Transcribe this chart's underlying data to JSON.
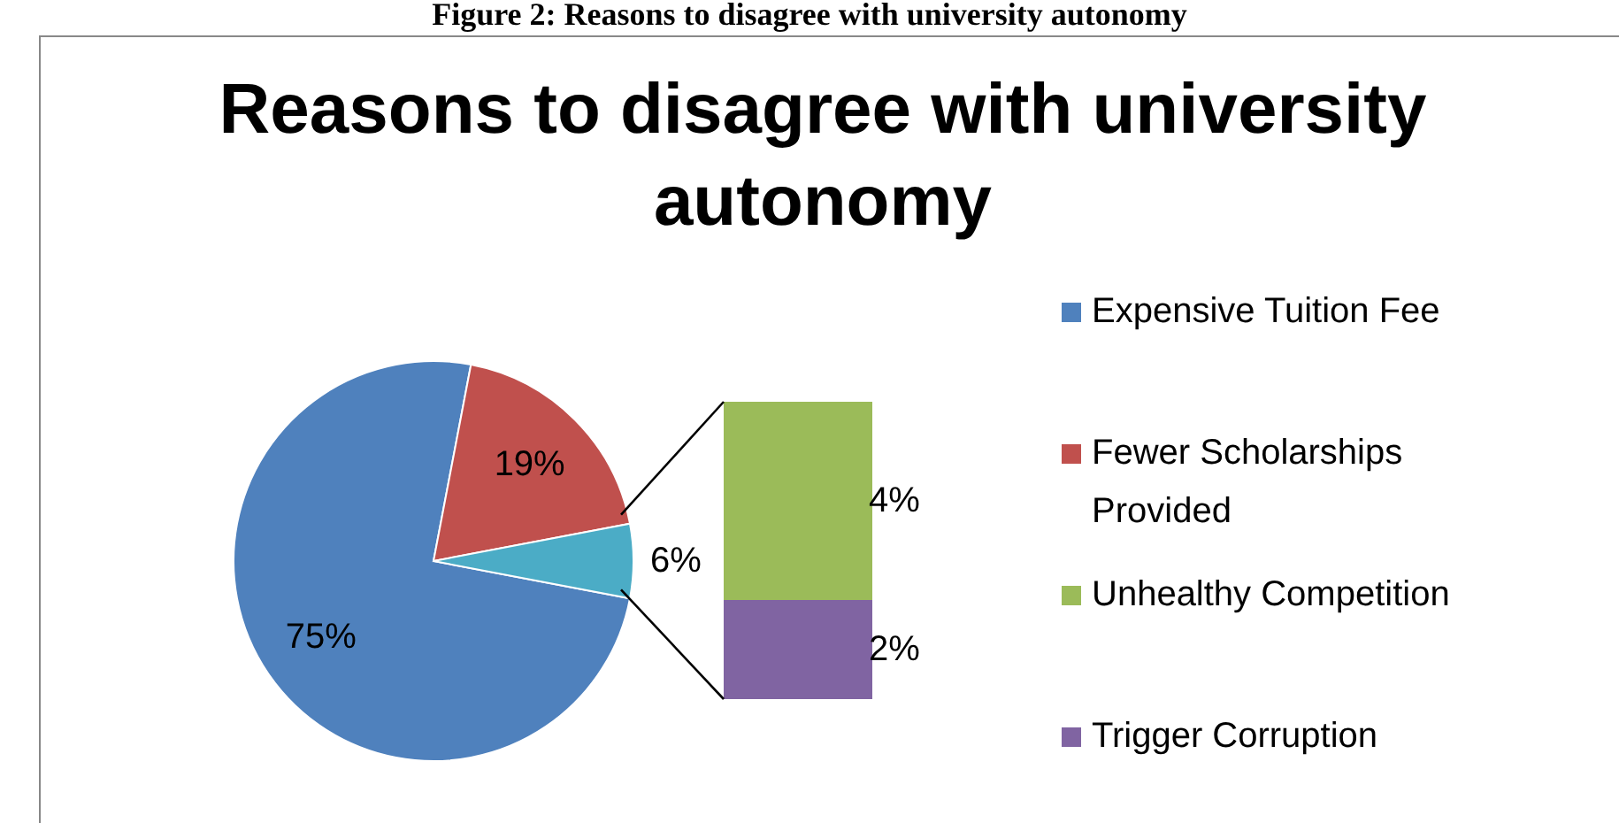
{
  "chart_data": [
    {
      "type": "pie",
      "title": "Reasons to disagree with university autonomy",
      "annotations": [
        "Figure 2: Reasons to disagree with university autonomy"
      ],
      "categories": [
        "Expensive Tuition Fee",
        "Fewer Scholarships Provided",
        null
      ],
      "values": [
        75,
        19,
        6
      ],
      "colors": [
        "#4f81bd",
        "#c0504d",
        "#4bacc6"
      ],
      "value_labels": [
        "75%",
        "19%",
        "6%"
      ],
      "legend": "right"
    },
    {
      "type": "bar",
      "stacked": true,
      "categories": [
        null
      ],
      "series": [
        {
          "name": "Trigger Corruption",
          "color": "#8064a2",
          "values": [
            2
          ],
          "value_labels": [
            "2%"
          ]
        },
        {
          "name": "Unhealthy Competition",
          "color": "#9bbb59",
          "values": [
            4
          ],
          "value_labels": [
            "4%"
          ]
        }
      ],
      "legend": "right"
    }
  ]
}
